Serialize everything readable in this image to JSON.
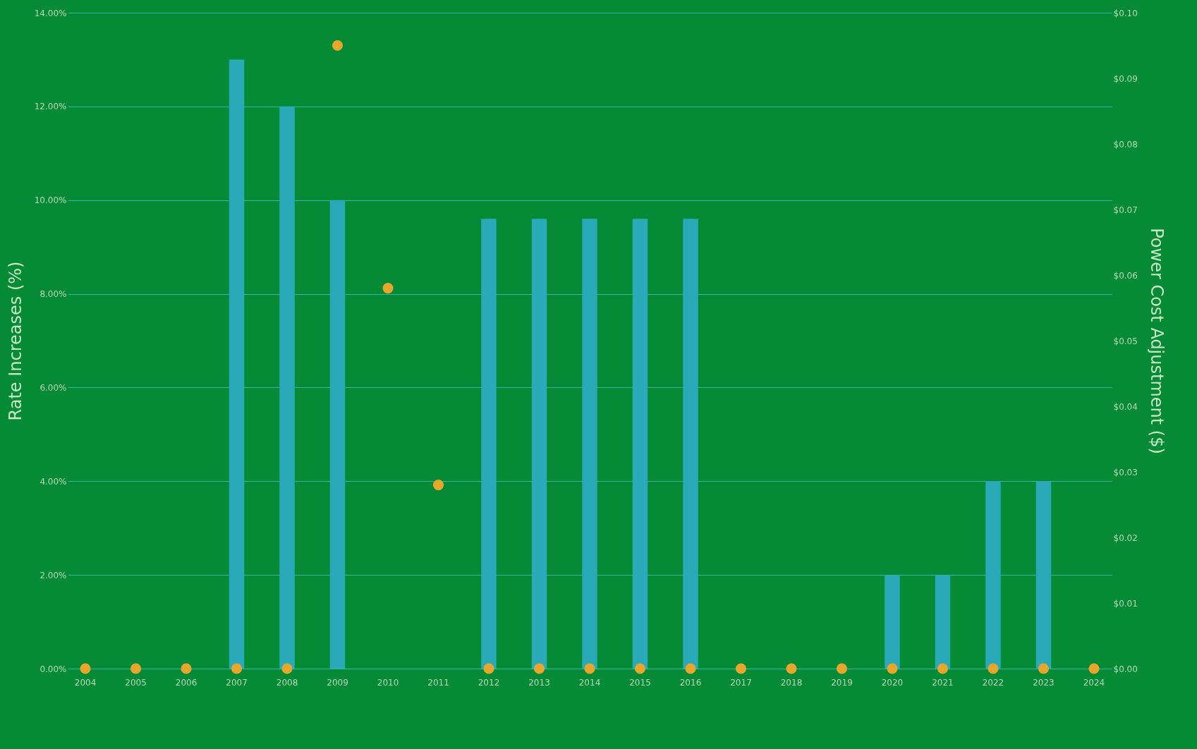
{
  "chart_data": {
    "type": "bar",
    "ylabel": "Rate Increases (%)",
    "y2label": "Power Cost Adjustment ($)",
    "categories": [
      "2004",
      "2005",
      "2006",
      "2007",
      "2008",
      "2009",
      "2010",
      "2011",
      "2012",
      "2013",
      "2014",
      "2015",
      "2016",
      "2017",
      "2018",
      "2019",
      "2020",
      "2021",
      "2022",
      "2023",
      "2024"
    ],
    "series": [
      {
        "color": "#2aa9b9",
        "values": [
          0,
          0,
          0,
          13,
          12,
          10,
          0,
          0,
          9.6,
          9.6,
          9.6,
          9.6,
          9.6,
          0,
          0,
          0,
          2,
          2,
          4,
          4,
          0
        ]
      },
      {
        "type": "scatter",
        "axis": "y2",
        "color": "#e8a72c",
        "values": [
          0,
          0,
          0,
          0,
          0,
          0.095,
          0.058,
          0.028,
          0,
          0,
          0,
          0,
          0,
          0,
          0,
          0,
          0,
          0,
          0,
          0,
          0
        ]
      }
    ],
    "ylim": [
      0,
      14
    ],
    "yticks": [
      {
        "value": 0,
        "label": "0.00%"
      },
      {
        "value": 2,
        "label": "2.00%"
      },
      {
        "value": 4,
        "label": "4.00%"
      },
      {
        "value": 6,
        "label": "6.00%"
      },
      {
        "value": 8,
        "label": "8.00%"
      },
      {
        "value": 10,
        "label": "10.00%"
      },
      {
        "value": 12,
        "label": "12.00%"
      },
      {
        "value": 14,
        "label": "14.00%"
      }
    ],
    "y2lim": [
      0,
      0.1
    ],
    "y2ticks": [
      {
        "value": 0,
        "label": "$0.00"
      },
      {
        "value": 0.01,
        "label": "$0.01"
      },
      {
        "value": 0.02,
        "label": "$0.02"
      },
      {
        "value": 0.03,
        "label": "$0.03"
      },
      {
        "value": 0.04,
        "label": "$0.04"
      },
      {
        "value": 0.05,
        "label": "$0.05"
      },
      {
        "value": 0.06,
        "label": "$0.06"
      },
      {
        "value": 0.07,
        "label": "$0.07"
      },
      {
        "value": 0.08,
        "label": "$0.08"
      },
      {
        "value": 0.09,
        "label": "$0.09"
      },
      {
        "value": 0.1,
        "label": "$0.10"
      }
    ],
    "grid": "y",
    "marker": "circle"
  }
}
